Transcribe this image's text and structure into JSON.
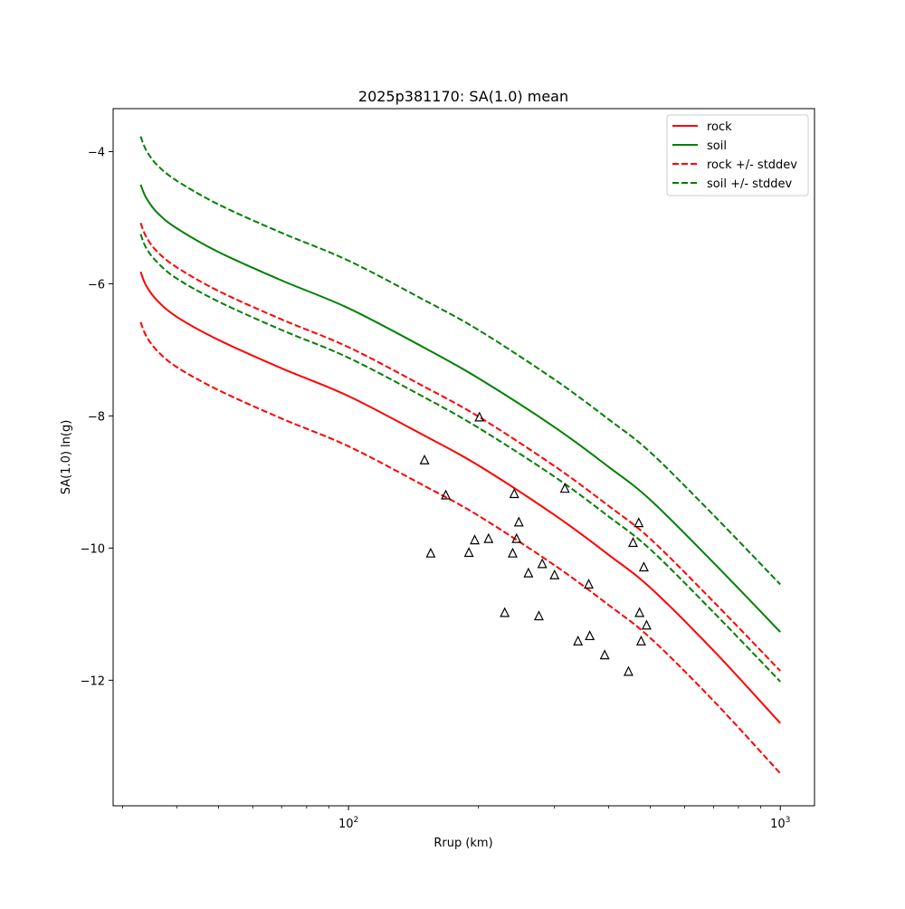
{
  "chart_data": {
    "type": "line",
    "title": "2025p381170: SA(1.0) mean",
    "xlabel": "Rrup (km)",
    "ylabel": "SA(1.0) ln(g)",
    "xscale": "log",
    "xlim": [
      28.5,
      1200
    ],
    "ylim": [
      -13.9,
      -3.35
    ],
    "grid": false,
    "legend_position": "top-right",
    "x_tick_labels": [
      {
        "value": 100,
        "base": "10",
        "exp": "2"
      },
      {
        "value": 1000,
        "base": "10",
        "exp": "3"
      }
    ],
    "y_ticks": [
      {
        "value": -4,
        "label": "−4"
      },
      {
        "value": -6,
        "label": "−6"
      },
      {
        "value": -8,
        "label": "−8"
      },
      {
        "value": -10,
        "label": "−10"
      },
      {
        "value": -12,
        "label": "−12"
      }
    ],
    "series": [
      {
        "name": "rock",
        "color": "#ff0000",
        "style": "solid",
        "x": [
          33,
          34,
          36,
          40,
          50,
          70,
          100,
          150,
          200,
          300,
          400,
          500,
          700,
          1000
        ],
        "y": [
          -5.82,
          -6.03,
          -6.25,
          -6.5,
          -6.85,
          -7.28,
          -7.7,
          -8.3,
          -8.75,
          -9.5,
          -10.1,
          -10.6,
          -11.55,
          -12.65
        ]
      },
      {
        "name": "soil",
        "color": "#008000",
        "style": "solid",
        "x": [
          33,
          34,
          36,
          40,
          50,
          70,
          100,
          150,
          200,
          300,
          400,
          500,
          700,
          1000
        ],
        "y": [
          -4.5,
          -4.7,
          -4.92,
          -5.16,
          -5.52,
          -5.95,
          -6.37,
          -6.97,
          -7.43,
          -8.17,
          -8.77,
          -9.27,
          -10.22,
          -11.27
        ]
      },
      {
        "name": "rock +/- stddev",
        "color": "#ff0000",
        "style": "dashed",
        "x": [
          33,
          34,
          36,
          40,
          50,
          70,
          100,
          150,
          200,
          300,
          400,
          500,
          700,
          1000
        ],
        "y": [
          -5.08,
          -5.29,
          -5.51,
          -5.75,
          -6.11,
          -6.54,
          -6.96,
          -7.56,
          -8.01,
          -8.76,
          -9.36,
          -9.86,
          -10.81,
          -11.86
        ]
      },
      {
        "name": "",
        "color": "#ff0000",
        "style": "dashed",
        "x": [
          33,
          34,
          36,
          40,
          50,
          70,
          100,
          150,
          200,
          300,
          400,
          500,
          700,
          1000
        ],
        "y": [
          -6.58,
          -6.79,
          -7.01,
          -7.26,
          -7.61,
          -8.04,
          -8.46,
          -9.06,
          -9.51,
          -10.26,
          -10.86,
          -11.36,
          -12.31,
          -13.41
        ]
      },
      {
        "name": "soil +/- stddev",
        "color": "#008000",
        "style": "dashed",
        "x": [
          33,
          34,
          36,
          40,
          50,
          70,
          100,
          150,
          200,
          300,
          400,
          500,
          700,
          1000
        ],
        "y": [
          -3.77,
          -3.98,
          -4.2,
          -4.44,
          -4.8,
          -5.23,
          -5.65,
          -6.25,
          -6.7,
          -7.45,
          -8.05,
          -8.55,
          -9.5,
          -10.55
        ]
      },
      {
        "name": "",
        "color": "#008000",
        "style": "dashed",
        "x": [
          33,
          34,
          36,
          40,
          50,
          70,
          100,
          150,
          200,
          300,
          400,
          500,
          700,
          1000
        ],
        "y": [
          -5.25,
          -5.46,
          -5.67,
          -5.92,
          -6.27,
          -6.7,
          -7.12,
          -7.72,
          -8.18,
          -8.92,
          -9.52,
          -10.02,
          -10.97,
          -12.02
        ]
      }
    ],
    "observations": {
      "marker": "triangle",
      "points": [
        {
          "x": 150,
          "y": -8.67
        },
        {
          "x": 155,
          "y": -10.08
        },
        {
          "x": 168,
          "y": -9.2
        },
        {
          "x": 190,
          "y": -10.07
        },
        {
          "x": 196,
          "y": -9.88
        },
        {
          "x": 201,
          "y": -8.02
        },
        {
          "x": 211,
          "y": -9.86
        },
        {
          "x": 230,
          "y": -10.98
        },
        {
          "x": 240,
          "y": -10.08
        },
        {
          "x": 242,
          "y": -9.18
        },
        {
          "x": 245,
          "y": -9.86
        },
        {
          "x": 248,
          "y": -9.61
        },
        {
          "x": 261,
          "y": -10.38
        },
        {
          "x": 276,
          "y": -11.03
        },
        {
          "x": 281,
          "y": -10.24
        },
        {
          "x": 300,
          "y": -10.41
        },
        {
          "x": 317,
          "y": -9.1
        },
        {
          "x": 340,
          "y": -11.41
        },
        {
          "x": 360,
          "y": -10.55
        },
        {
          "x": 362,
          "y": -11.33
        },
        {
          "x": 392,
          "y": -11.62
        },
        {
          "x": 445,
          "y": -11.87
        },
        {
          "x": 456,
          "y": -9.92
        },
        {
          "x": 470,
          "y": -9.62
        },
        {
          "x": 472,
          "y": -10.98
        },
        {
          "x": 476,
          "y": -11.41
        },
        {
          "x": 483,
          "y": -10.29
        },
        {
          "x": 490,
          "y": -11.17
        }
      ]
    }
  }
}
